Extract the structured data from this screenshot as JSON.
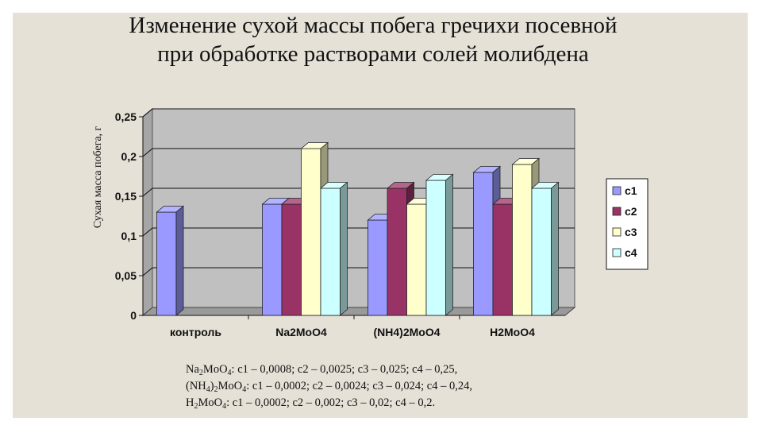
{
  "title": {
    "line1": "Изменение сухой массы побега гречихи посевной",
    "line2": "при обработке растворами солей молибдена"
  },
  "chart_data": {
    "type": "bar",
    "categories": [
      "контроль",
      "Na2MoO4",
      "(NH4)2MoO4",
      "H2MoO4"
    ],
    "series": [
      {
        "name": "c1",
        "values": [
          0.13,
          0.14,
          0.12,
          0.18
        ],
        "color": "#9999ff"
      },
      {
        "name": "c2",
        "values": [
          null,
          0.14,
          0.16,
          0.14
        ],
        "color": "#993366"
      },
      {
        "name": "c3",
        "values": [
          null,
          0.21,
          0.14,
          0.19
        ],
        "color": "#ffffcc"
      },
      {
        "name": "c4",
        "values": [
          null,
          0.16,
          0.17,
          0.16
        ],
        "color": "#ccffff"
      }
    ],
    "ylabel": "Сухая масса побега, г",
    "ylim": [
      0,
      0.25
    ],
    "yticks": [
      0,
      0.05,
      0.1,
      0.15,
      0.2,
      0.25
    ],
    "ytick_labels": [
      "0",
      "0,05",
      "0,1",
      "0,15",
      "0,2",
      "0,25"
    ],
    "grid": true,
    "legend_position": "right"
  },
  "notes": [
    {
      "parts": [
        [
          "Na",
          ""
        ],
        [
          "2",
          "sub"
        ],
        [
          "MoO",
          ""
        ],
        [
          "4",
          "sub"
        ],
        [
          ": c1 – 0,0008; c2 – 0,0025; c3 – 0,025; c4 – 0,25,",
          ""
        ]
      ]
    },
    {
      "parts": [
        [
          "(NH",
          ""
        ],
        [
          "4",
          "sub"
        ],
        [
          ")",
          ""
        ],
        [
          "2",
          "sub"
        ],
        [
          "MoO",
          ""
        ],
        [
          "4",
          "sub"
        ],
        [
          ":  c1 – 0,0002; c2 – 0,0024; c3 – 0,024; c4 – 0,24,",
          ""
        ]
      ]
    },
    {
      "parts": [
        [
          "H",
          ""
        ],
        [
          "2",
          "sub"
        ],
        [
          "MoO",
          ""
        ],
        [
          "4",
          "sub"
        ],
        [
          ":  c1 – 0,0002; c2 – 0,002; c3 – 0,02; c4 – 0,2.",
          ""
        ]
      ]
    }
  ]
}
